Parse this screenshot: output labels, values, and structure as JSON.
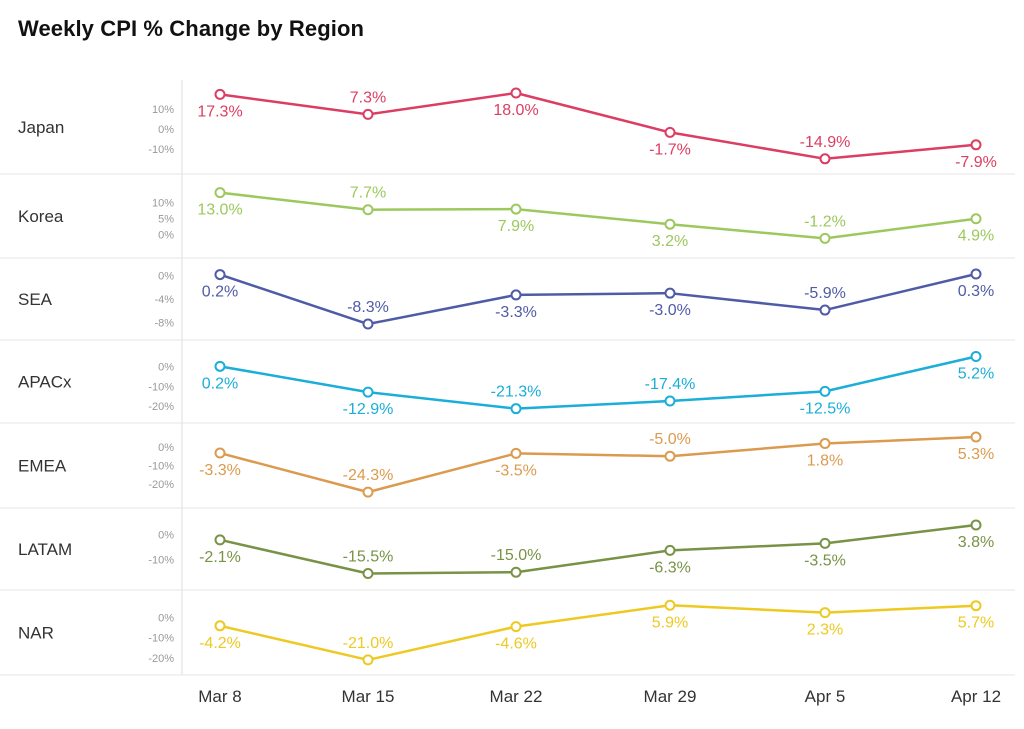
{
  "chart_data": {
    "type": "line",
    "title": "Weekly CPI % Change by Region",
    "x": [
      "Mar 8",
      "Mar 15",
      "Mar 22",
      "Mar 29",
      "Apr 5",
      "Apr 12"
    ],
    "panels": [
      {
        "name": "Japan",
        "color": "#dc3d63",
        "values": [
          17.3,
          7.3,
          18.0,
          -1.7,
          -14.9,
          -7.9
        ],
        "ticks": [
          "10%",
          "0%",
          "-10%"
        ],
        "tick_values": [
          10,
          0,
          -10
        ],
        "ylim": [
          -18,
          20
        ]
      },
      {
        "name": "Korea",
        "color": "#9cc85e",
        "values": [
          13.0,
          7.7,
          7.9,
          3.2,
          -1.2,
          4.9
        ],
        "ticks": [
          "10%",
          "5%",
          "0%"
        ],
        "tick_values": [
          10,
          5,
          0
        ],
        "ylim": [
          -4.5,
          16
        ]
      },
      {
        "name": "SEA",
        "color": "#4f5ba6",
        "values": [
          0.2,
          -8.3,
          -3.3,
          -3.0,
          -5.9,
          0.3
        ],
        "ticks": [
          "0%",
          "-4%",
          "-8%"
        ],
        "tick_values": [
          0,
          -4,
          -8
        ],
        "ylim": [
          -9.5,
          1.5
        ]
      },
      {
        "name": "APACx",
        "color": "#1aaed8",
        "values": [
          0.2,
          -12.9,
          -21.3,
          -17.4,
          -12.5,
          5.2
        ],
        "ticks": [
          "0%",
          "-10%",
          "-20%"
        ],
        "tick_values": [
          0,
          -10,
          -20
        ],
        "ylim": [
          -24,
          9
        ]
      },
      {
        "name": "EMEA",
        "color": "#dc9a4e",
        "values": [
          -3.3,
          -24.3,
          -3.5,
          -5.0,
          1.8,
          5.3
        ],
        "ticks": [
          "0%",
          "-10%",
          "-20%"
        ],
        "tick_values": [
          0,
          -10,
          -20
        ],
        "ylim": [
          -28,
          8
        ]
      },
      {
        "name": "LATAM",
        "color": "#789246",
        "values": [
          -2.1,
          -15.5,
          -15.0,
          -6.3,
          -3.5,
          3.8
        ],
        "ticks": [
          "0%",
          "-10%"
        ],
        "tick_values": [
          0,
          -10
        ],
        "ylim": [
          -18.5,
          7
        ]
      },
      {
        "name": "NAR",
        "color": "#edc921",
        "values": [
          -4.2,
          -21.0,
          -4.6,
          5.9,
          2.3,
          5.7
        ],
        "ticks": [
          "0%",
          "-10%",
          "-20%"
        ],
        "tick_values": [
          0,
          -10,
          -20
        ],
        "ylim": [
          -24,
          9
        ]
      }
    ]
  }
}
